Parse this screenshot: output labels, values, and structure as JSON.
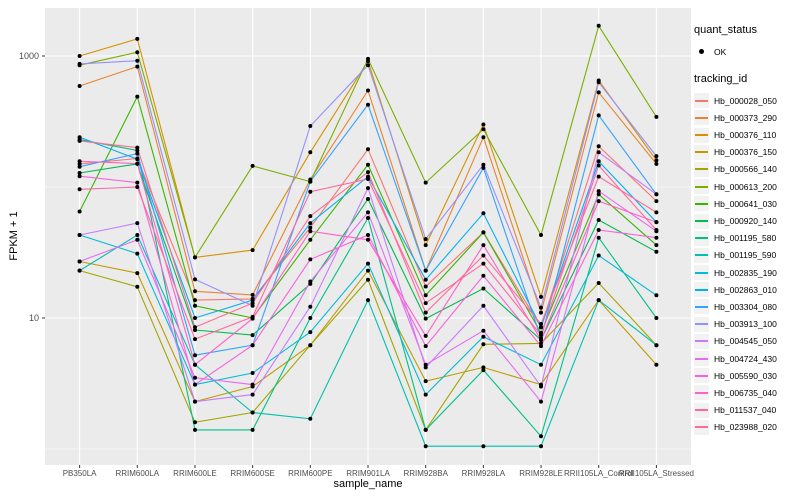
{
  "chart_data": {
    "type": "line",
    "title": "",
    "xlabel": "sample_name",
    "ylabel": "FPKM + 1",
    "y_scale": "log10",
    "y_axis_tick_labels": [
      "1000",
      "10"
    ],
    "y_axis_tick_values": [
      1000,
      10
    ],
    "y_minor_grid_values": [
      100,
      1
    ],
    "ylim_log": [
      0.72,
      3.35
    ],
    "grid": "on",
    "legend_position": "right",
    "categories": [
      "PB350LA",
      "RRIM600LA",
      "RRIM600LE",
      "RRIM600SE",
      "RRIM600PE",
      "RRIM901LA",
      "RRIM928BA",
      "RRIM928LA",
      "RRIM928LE",
      "RRII105LA_Control",
      "RRII105LA_Stressed"
    ],
    "legend": {
      "quant_status_title": "quant_status",
      "quant_status_entries": [
        {
          "label": "OK",
          "symbol": "point"
        }
      ],
      "tracking_id_title": "tracking_id"
    },
    "series": [
      {
        "tracking_id": "Hb_000028_050",
        "quant_status": "OK",
        "color": "#F8766D",
        "values": [
          150,
          165,
          13.7,
          14,
          49,
          194,
          17.4,
          45,
          8.5,
          205,
          78
        ]
      },
      {
        "tracking_id": "Hb_000373_290",
        "quant_status": "OK",
        "color": "#EA8331",
        "values": [
          590,
          830,
          16,
          15,
          114,
          545,
          23,
          240,
          11,
          527,
          150
        ]
      },
      {
        "tracking_id": "Hb_000376_110",
        "quant_status": "OK",
        "color": "#D89000",
        "values": [
          1000,
          1350,
          29,
          33,
          184,
          915,
          36,
          300,
          14.5,
          650,
          160
        ]
      },
      {
        "tracking_id": "Hb_000376_150",
        "quant_status": "OK",
        "color": "#C09B00",
        "values": [
          27,
          22,
          2.3,
          3,
          6.2,
          23,
          3.3,
          4.2,
          3.1,
          13.7,
          4.4
        ]
      },
      {
        "tracking_id": "Hb_000566_140",
        "quant_status": "OK",
        "color": "#A3A500",
        "values": [
          23,
          17.3,
          1.6,
          1.9,
          6.2,
          19.6,
          1.4,
          6.3,
          6.4,
          18.5,
          6.2
        ]
      },
      {
        "tracking_id": "Hb_000613_200",
        "quant_status": "OK",
        "color": "#7CAE00",
        "values": [
          850,
          1070,
          29,
          145,
          110,
          950,
          108,
          276,
          43,
          1700,
          343
        ]
      },
      {
        "tracking_id": "Hb_000641_030",
        "quant_status": "OK",
        "color": "#39B600",
        "values": [
          65,
          490,
          12.4,
          10,
          39.5,
          148,
          14.9,
          45,
          7.7,
          88,
          36
        ]
      },
      {
        "tracking_id": "Hb_000920_140",
        "quant_status": "OK",
        "color": "#00BB4E",
        "values": [
          128,
          150,
          8.1,
          7.4,
          18.2,
          81,
          9.9,
          16.8,
          6.8,
          56,
          32
        ]
      },
      {
        "tracking_id": "Hb_001195_580",
        "quant_status": "OK",
        "color": "#00C087",
        "values": [
          230,
          190,
          1.4,
          1.4,
          10,
          58,
          1.4,
          4,
          1.25,
          41,
          10
        ]
      },
      {
        "tracking_id": "Hb_001195_590",
        "quant_status": "OK",
        "color": "#00C0AF",
        "values": [
          23,
          43,
          4.4,
          1.9,
          1.7,
          13.7,
          1.05,
          1.05,
          1.05,
          13.7,
          6.2
        ]
      },
      {
        "tracking_id": "Hb_002835_190",
        "quant_status": "OK",
        "color": "#00BCD8",
        "values": [
          43,
          31,
          3.1,
          3.8,
          7.8,
          26,
          2.6,
          7.2,
          4.4,
          30,
          14.9
        ]
      },
      {
        "tracking_id": "Hb_002863_010",
        "quant_status": "OK",
        "color": "#00B0F6",
        "values": [
          240,
          163,
          10,
          13.7,
          53,
          120,
          19.6,
          63,
          8.5,
          157,
          54
        ]
      },
      {
        "tracking_id": "Hb_003304_080",
        "quant_status": "OK",
        "color": "#35A2FF",
        "values": [
          143,
          180,
          5.2,
          6.2,
          110,
          425,
          23,
          140,
          7,
          352,
          88
        ]
      },
      {
        "tracking_id": "Hb_003913_100",
        "quant_status": "OK",
        "color": "#9590FF",
        "values": [
          870,
          920,
          19.7,
          12.4,
          292,
          850,
          40,
          148,
          12,
          630,
          172
        ]
      },
      {
        "tracking_id": "Hb_004545_050",
        "quant_status": "OK",
        "color": "#C77CFF",
        "values": [
          43,
          53,
          2.3,
          2.6,
          12.2,
          98,
          4.2,
          12.4,
          3,
          184,
          88
        ]
      },
      {
        "tracking_id": "Hb_004724_430",
        "quant_status": "OK",
        "color": "#E76BF3",
        "values": [
          27,
          39.5,
          3.5,
          3.1,
          19,
          64,
          4.4,
          8,
          2.3,
          93,
          46
        ]
      },
      {
        "tracking_id": "Hb_005590_030",
        "quant_status": "OK",
        "color": "#FA62DB",
        "values": [
          121,
          108,
          3.1,
          6.2,
          28,
          43,
          6.1,
          21,
          6.1,
          47,
          41
        ]
      },
      {
        "tracking_id": "Hb_006735_040",
        "quant_status": "OK",
        "color": "#FF61C7",
        "values": [
          157,
          151,
          4.4,
          9.9,
          46,
          39.5,
          7.3,
          36,
          6.8,
          78,
          54
        ]
      },
      {
        "tracking_id": "Hb_011537_040",
        "quant_status": "OK",
        "color": "#FF68A1",
        "values": [
          96,
          100,
          6.9,
          10.2,
          92,
          115,
          13,
          26,
          7.4,
          146,
          47
        ]
      },
      {
        "tracking_id": "Hb_023988_020",
        "quant_status": "OK",
        "color": "#FF6B94",
        "values": [
          225,
          200,
          8.5,
          13,
          60,
          130,
          11,
          30,
          9,
          120,
          64
        ]
      }
    ],
    "colors": {
      "panel_background": "#EBEBEB",
      "gridline": "#FFFFFF",
      "point": "#000000",
      "tick_text": "#4D4D4D",
      "axis_title_text": "#000000",
      "legend_key_background": "#F2F2F2"
    }
  }
}
